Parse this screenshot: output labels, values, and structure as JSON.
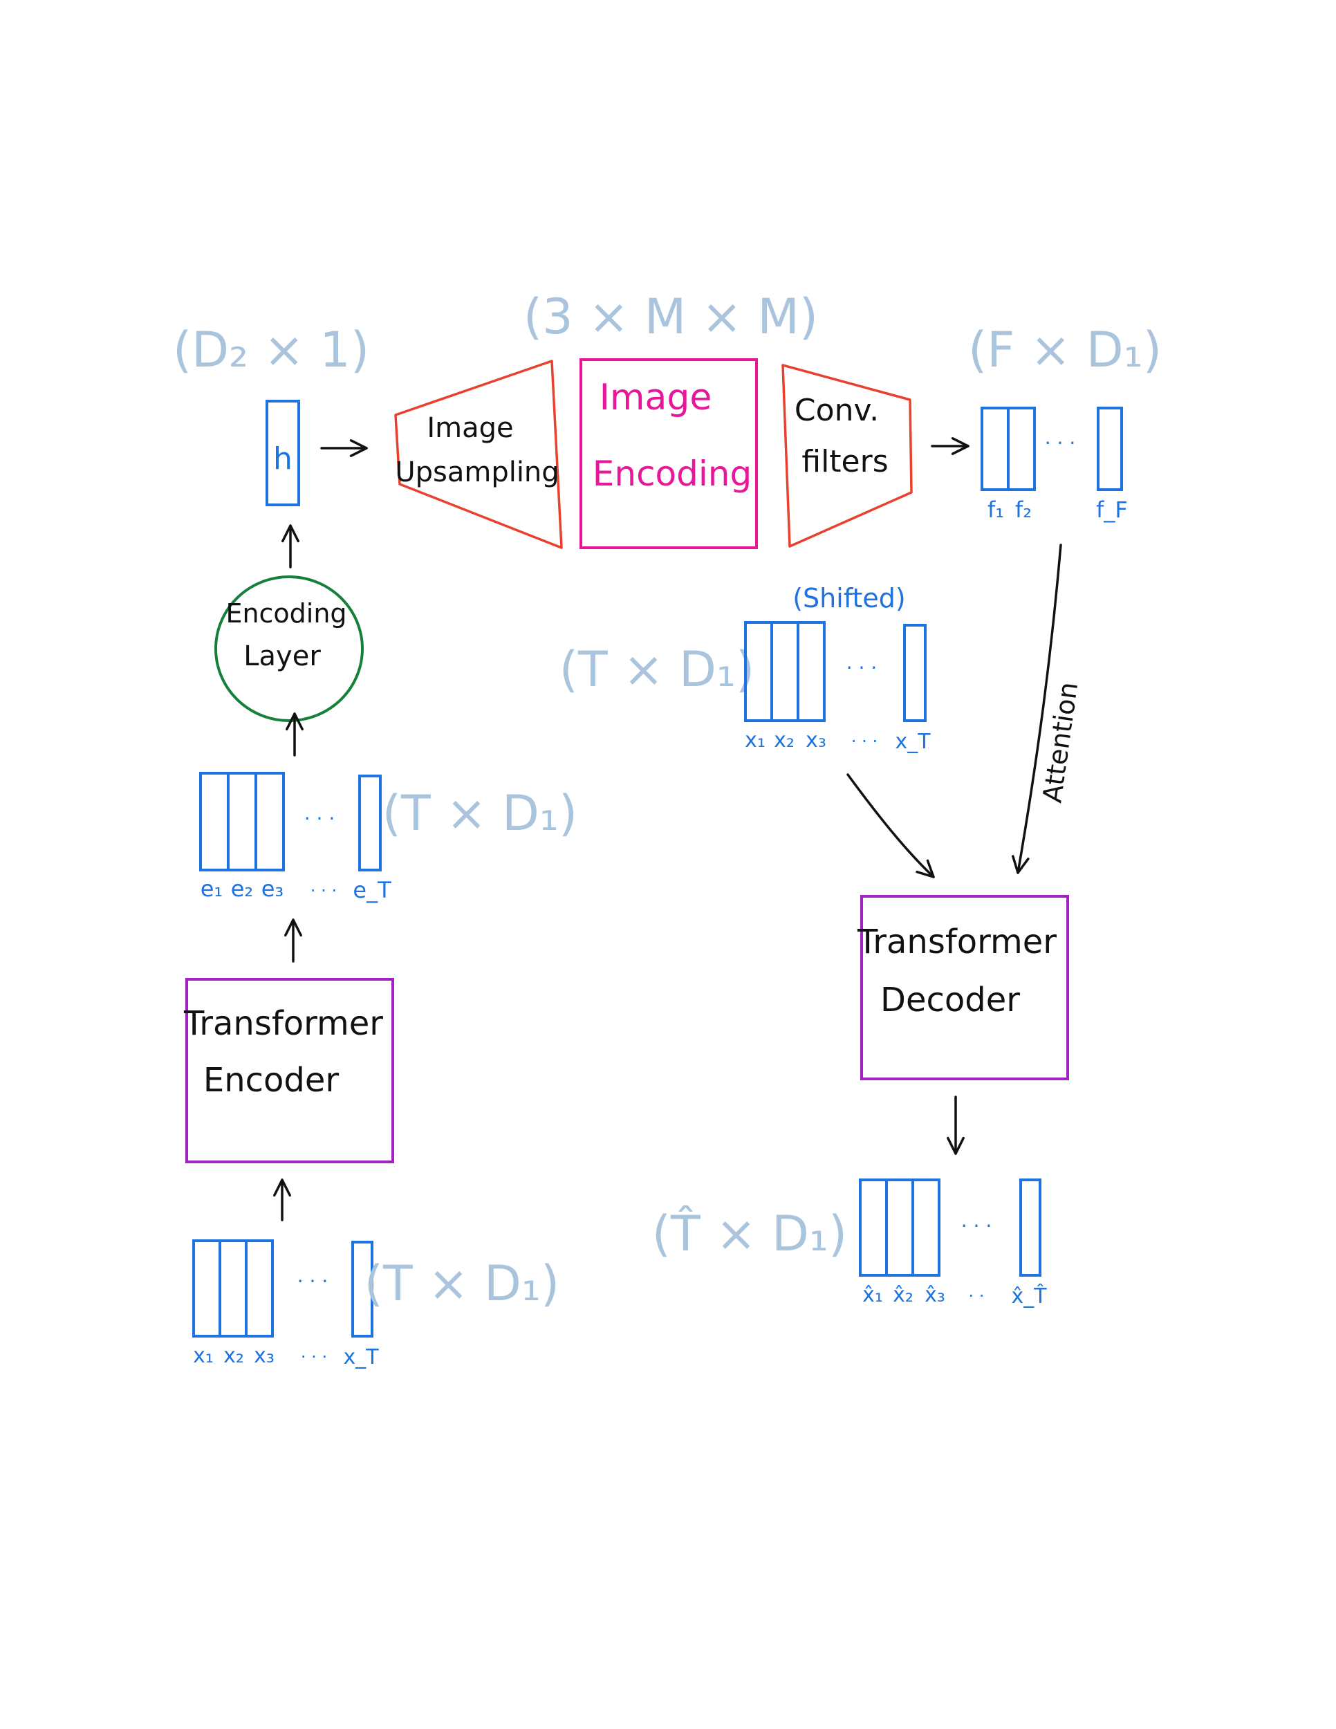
{
  "dimensions": {
    "h_vector": "(D₂ × 1)",
    "image": "(3 × M × M)",
    "filters": "(F × D₁)",
    "shifted_input": "(T × D₁)",
    "encoder_output": "(T × D₁)",
    "encoder_input": "(T × D₁)",
    "decoder_output": "(T̂ × D₁)"
  },
  "h_vector": {
    "label": "h"
  },
  "upsampling": {
    "line1": "Image",
    "line2": "Upsampling"
  },
  "image_encoding": {
    "line1": "Image",
    "line2": "Encoding"
  },
  "conv_filters": {
    "line1": "Conv.",
    "line2": "filters"
  },
  "filters_vectors": {
    "dots": "· · ·",
    "labels": [
      "f₁",
      "f₂",
      "f_F"
    ]
  },
  "encoding_layer": {
    "line1": "Encoding",
    "line2": "Layer"
  },
  "shifted": {
    "caption": "(Shifted)",
    "dots": "· · ·",
    "labels": [
      "x₁",
      "x₂",
      "x₃",
      "· · ·",
      "x_T"
    ]
  },
  "embeddings": {
    "dots": "· · ·",
    "labels": [
      "e₁",
      "e₂",
      "e₃",
      "· · ·",
      "e_T"
    ]
  },
  "attention": {
    "label": "Attention"
  },
  "encoder": {
    "line1": "Transformer",
    "line2": "Encoder"
  },
  "decoder": {
    "line1": "Transformer",
    "line2": "Decoder"
  },
  "inputs": {
    "dots": "· · ·",
    "labels": [
      "x₁",
      "x₂",
      "x₃",
      "· · ·",
      "x_T"
    ]
  },
  "outputs": {
    "dots": "· · ·",
    "labels": [
      "x̂₁",
      "x̂₂",
      "x̂₃",
      "· ·",
      "x̂_T̂"
    ]
  }
}
